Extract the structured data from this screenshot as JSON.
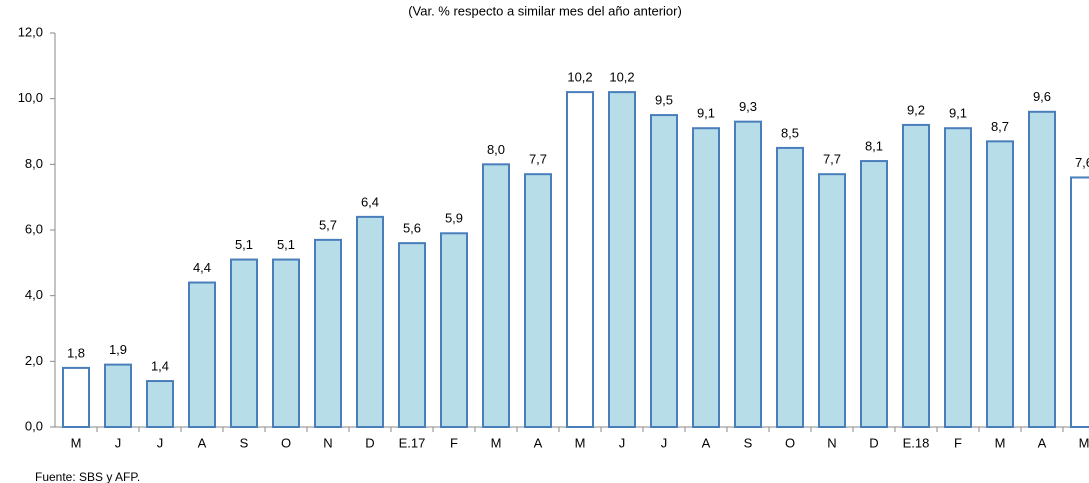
{
  "chart_data": {
    "type": "bar",
    "subtitle": "(Var. % respecto a similar mes del año anterior)",
    "footnote": "Fuente: SBS y AFP.",
    "categories": [
      "M",
      "J",
      "J",
      "A",
      "S",
      "O",
      "N",
      "D",
      "E.17",
      "F",
      "M",
      "A",
      "M",
      "J",
      "J",
      "A",
      "S",
      "O",
      "N",
      "D",
      "E.18",
      "F",
      "M",
      "A",
      "M"
    ],
    "values": [
      1.8,
      1.9,
      1.4,
      4.4,
      5.1,
      5.1,
      5.7,
      6.4,
      5.6,
      5.9,
      8.0,
      7.7,
      10.2,
      10.2,
      9.5,
      9.1,
      9.3,
      8.5,
      7.7,
      8.1,
      9.2,
      9.1,
      8.7,
      9.6,
      7.6
    ],
    "value_labels": [
      "1,8",
      "1,9",
      "1,4",
      "4,4",
      "5,1",
      "5,1",
      "5,7",
      "6,4",
      "5,6",
      "5,9",
      "8,0",
      "7,7",
      "10,2",
      "10,2",
      "9,5",
      "9,1",
      "9,3",
      "8,5",
      "7,7",
      "8,1",
      "9,2",
      "9,1",
      "8,7",
      "9,6",
      "7,6"
    ],
    "colors": [
      "#ffffff",
      "#b7dde8",
      "#b7dde8",
      "#b7dde8",
      "#b7dde8",
      "#b7dde8",
      "#b7dde8",
      "#b7dde8",
      "#b7dde8",
      "#b7dde8",
      "#b7dde8",
      "#b7dde8",
      "#ffffff",
      "#b7dde8",
      "#b7dde8",
      "#b7dde8",
      "#b7dde8",
      "#b7dde8",
      "#b7dde8",
      "#b7dde8",
      "#b7dde8",
      "#b7dde8",
      "#b7dde8",
      "#b7dde8",
      "#ffffff"
    ],
    "edge_color": "#4a7ebb",
    "ylim": [
      0,
      12
    ],
    "yticks": [
      {
        "value": 0,
        "label": "0,0"
      },
      {
        "value": 2,
        "label": "2,0"
      },
      {
        "value": 4,
        "label": "4,0"
      },
      {
        "value": 6,
        "label": "6,0"
      },
      {
        "value": 8,
        "label": "8,0"
      },
      {
        "value": 10,
        "label": "10,0"
      },
      {
        "value": 12,
        "label": "12,0"
      }
    ],
    "grid": false
  }
}
